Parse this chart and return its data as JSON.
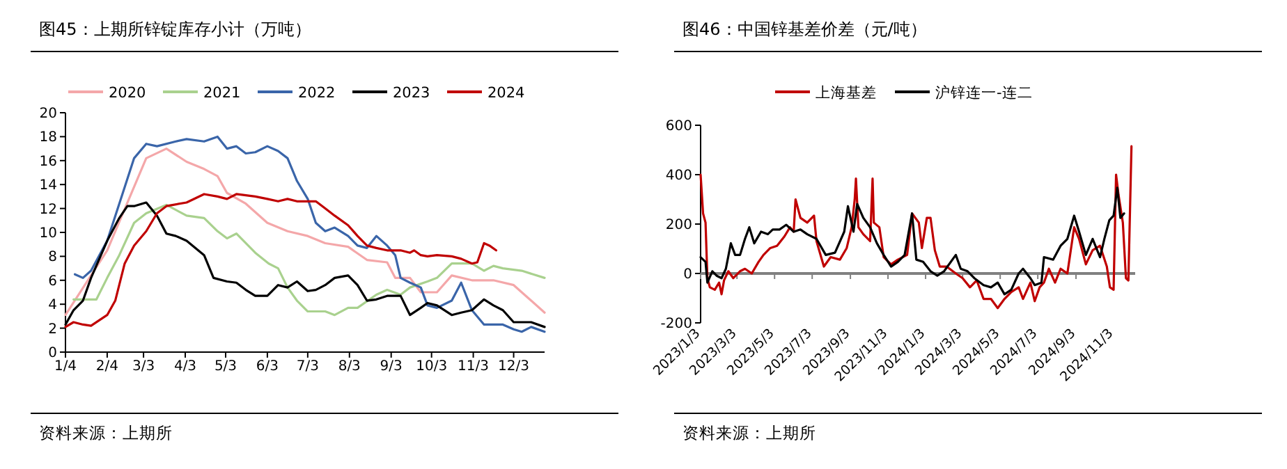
{
  "chart_data": [
    {
      "type": "line",
      "title": "图45：上期所锌锭库存小计（万吨）",
      "annotations": [
        "资料来源：上期所"
      ],
      "legend": "top",
      "grid": false,
      "marker": "none",
      "line_style": "solid",
      "xlim": [
        "--01-04",
        "--12-26"
      ],
      "xticks": [
        {
          "value": "--01-04",
          "label": "1/4"
        },
        {
          "value": "--02-04",
          "label": "2/4"
        },
        {
          "value": "--03-03",
          "label": "3/3"
        },
        {
          "value": "--04-03",
          "label": "4/3"
        },
        {
          "value": "--05-03",
          "label": "5/3"
        },
        {
          "value": "--06-03",
          "label": "6/3"
        },
        {
          "value": "--07-03",
          "label": "7/3"
        },
        {
          "value": "--08-03",
          "label": "8/3"
        },
        {
          "value": "--09-03",
          "label": "9/3"
        },
        {
          "value": "--10-03",
          "label": "10/3"
        },
        {
          "value": "--11-03",
          "label": "11/3"
        },
        {
          "value": "--12-03",
          "label": "12/3"
        }
      ],
      "ylim": [
        0,
        20
      ],
      "yticks": [
        0,
        2,
        4,
        6,
        8,
        10,
        12,
        14,
        16,
        18,
        20
      ],
      "series": [
        {
          "name": "2020",
          "color": "#f4a7a9",
          "x": [
            "--01-04",
            "--02-04",
            "--03-05",
            "--03-20",
            "--04-04",
            "--04-17",
            "--04-27",
            "--05-04",
            "--05-18",
            "--06-03",
            "--06-18",
            "--07-03",
            "--07-16",
            "--08-02",
            "--08-16",
            "--08-31",
            "--09-06",
            "--09-17",
            "--09-25",
            "--10-07",
            "--10-18",
            "--11-02",
            "--11-18",
            "--12-03",
            "--12-16",
            "--12-26"
          ],
          "values": [
            3.1,
            8.5,
            16.2,
            17.0,
            15.9,
            15.3,
            14.7,
            13.3,
            12.4,
            10.8,
            10.1,
            9.7,
            9.1,
            8.8,
            7.7,
            7.5,
            6.2,
            6.2,
            5.0,
            5.0,
            6.4,
            6.0,
            6.0,
            5.6,
            4.3,
            3.3
          ]
        },
        {
          "name": "2021",
          "color": "#a9d18e",
          "x": [
            "--01-10",
            "--01-27",
            "--02-04",
            "--02-13",
            "--02-24",
            "--03-05",
            "--03-20",
            "--04-04",
            "--04-17",
            "--04-27",
            "--05-04",
            "--05-11",
            "--05-25",
            "--06-04",
            "--06-11",
            "--06-18",
            "--06-25",
            "--07-03",
            "--07-16",
            "--07-23",
            "--08-02",
            "--08-09",
            "--08-23",
            "--08-31",
            "--09-10",
            "--09-17",
            "--09-30",
            "--10-07",
            "--10-18",
            "--11-02",
            "--11-11",
            "--11-18",
            "--11-25",
            "--12-09",
            "--12-26"
          ],
          "values": [
            4.4,
            4.4,
            6.2,
            8.1,
            10.8,
            11.6,
            12.3,
            11.4,
            11.2,
            10.1,
            9.5,
            9.9,
            8.3,
            7.4,
            7.0,
            5.4,
            4.3,
            3.4,
            3.4,
            3.1,
            3.7,
            3.7,
            4.8,
            5.2,
            4.8,
            5.4,
            5.9,
            6.2,
            7.4,
            7.4,
            6.8,
            7.2,
            7.0,
            6.8,
            6.2
          ]
        },
        {
          "name": "2022",
          "color": "#3a65a9",
          "x": [
            "--01-11",
            "--01-17",
            "--01-23",
            "--02-04",
            "--02-13",
            "--02-24",
            "--03-05",
            "--03-13",
            "--03-27",
            "--04-04",
            "--04-17",
            "--04-27",
            "--05-04",
            "--05-11",
            "--05-18",
            "--05-25",
            "--06-03",
            "--06-11",
            "--06-18",
            "--06-25",
            "--07-03",
            "--07-09",
            "--07-16",
            "--07-23",
            "--08-02",
            "--08-09",
            "--08-16",
            "--08-23",
            "--08-31",
            "--09-06",
            "--09-10",
            "--09-17",
            "--09-25",
            "--09-30",
            "--10-07",
            "--10-18",
            "--10-25",
            "--11-02",
            "--11-11",
            "--11-18",
            "--11-25",
            "--12-03",
            "--12-09",
            "--12-16",
            "--12-26"
          ],
          "values": [
            6.5,
            6.2,
            6.8,
            9.3,
            12.4,
            16.2,
            17.4,
            17.2,
            17.6,
            17.8,
            17.6,
            18.0,
            17.0,
            17.2,
            16.6,
            16.7,
            17.2,
            16.8,
            16.2,
            14.3,
            12.8,
            10.8,
            10.1,
            10.4,
            9.7,
            8.9,
            8.7,
            9.7,
            8.9,
            8.1,
            6.2,
            5.8,
            5.4,
            3.9,
            3.7,
            4.3,
            5.8,
            3.5,
            2.3,
            2.3,
            2.3,
            1.9,
            1.7,
            2.1,
            1.7
          ]
        },
        {
          "name": "2023",
          "color": "#000000",
          "x": [
            "--01-04",
            "--01-10",
            "--01-17",
            "--01-23",
            "--02-04",
            "--02-13",
            "--02-19",
            "--02-24",
            "--03-05",
            "--03-13",
            "--03-20",
            "--03-27",
            "--04-04",
            "--04-17",
            "--04-24",
            "--05-04",
            "--05-11",
            "--05-18",
            "--05-25",
            "--06-03",
            "--06-11",
            "--06-18",
            "--06-25",
            "--07-03",
            "--07-09",
            "--07-16",
            "--07-23",
            "--08-02",
            "--08-09",
            "--08-16",
            "--08-23",
            "--08-31",
            "--09-10",
            "--09-17",
            "--09-25",
            "--09-30",
            "--10-07",
            "--10-18",
            "--10-25",
            "--11-02",
            "--11-11",
            "--11-18",
            "--11-25",
            "--12-03",
            "--12-16",
            "--12-26"
          ],
          "values": [
            2.3,
            3.5,
            4.3,
            6.2,
            9.3,
            11.2,
            12.2,
            12.2,
            12.5,
            11.4,
            9.9,
            9.7,
            9.3,
            8.1,
            6.2,
            5.9,
            5.8,
            5.2,
            4.7,
            4.7,
            5.6,
            5.4,
            5.9,
            5.1,
            5.2,
            5.6,
            6.2,
            6.4,
            5.6,
            4.3,
            4.4,
            4.7,
            4.7,
            3.1,
            3.7,
            4.1,
            3.9,
            3.1,
            3.3,
            3.5,
            4.4,
            3.9,
            3.5,
            2.5,
            2.5,
            2.1
          ]
        },
        {
          "name": "2024",
          "color": "#c00000",
          "x": [
            "--01-04",
            "--01-10",
            "--01-17",
            "--01-23",
            "--02-04",
            "--02-10",
            "--02-17",
            "--02-24",
            "--03-05",
            "--03-13",
            "--03-20",
            "--04-04",
            "--04-17",
            "--04-27",
            "--05-04",
            "--05-11",
            "--05-25",
            "--06-03",
            "--06-11",
            "--06-18",
            "--06-25",
            "--07-09",
            "--07-16",
            "--07-23",
            "--08-02",
            "--08-09",
            "--08-16",
            "--08-23",
            "--08-31",
            "--09-10",
            "--09-17",
            "--09-20",
            "--09-25",
            "--09-30",
            "--10-07",
            "--10-18",
            "--10-25",
            "--11-02",
            "--11-06",
            "--11-11",
            "--11-15",
            "--11-20"
          ],
          "values": [
            2.1,
            2.5,
            2.3,
            2.2,
            3.1,
            4.3,
            7.4,
            8.9,
            10.1,
            11.6,
            12.2,
            12.5,
            13.2,
            13.0,
            12.8,
            13.2,
            13.0,
            12.8,
            12.6,
            12.8,
            12.6,
            12.6,
            12.0,
            11.4,
            10.6,
            9.7,
            8.9,
            8.7,
            8.5,
            8.5,
            8.3,
            8.5,
            8.1,
            8.0,
            8.1,
            8.0,
            7.8,
            7.4,
            7.5,
            9.1,
            8.9,
            8.5
          ]
        }
      ]
    },
    {
      "type": "line",
      "title": "图46：中国锌基差价差（元/吨）",
      "annotations": [
        "资料来源：上期所"
      ],
      "legend": "top",
      "grid": false,
      "marker": "none",
      "line_style": "solid",
      "xlim": [
        "2023-01-03",
        "2024-12-08"
      ],
      "xticks": [
        {
          "value": "2023-01-03",
          "label": "2023/1/3"
        },
        {
          "value": "2023-03-03",
          "label": "2023/3/3"
        },
        {
          "value": "2023-05-03",
          "label": "2023/5/3"
        },
        {
          "value": "2023-07-03",
          "label": "2023/7/3"
        },
        {
          "value": "2023-09-03",
          "label": "2023/9/3"
        },
        {
          "value": "2023-11-03",
          "label": "2023/11/3"
        },
        {
          "value": "2024-01-03",
          "label": "2024/1/3"
        },
        {
          "value": "2024-03-03",
          "label": "2024/3/3"
        },
        {
          "value": "2024-05-03",
          "label": "2024/5/3"
        },
        {
          "value": "2024-07-03",
          "label": "2024/7/3"
        },
        {
          "value": "2024-09-03",
          "label": "2024/9/3"
        },
        {
          "value": "2024-11-03",
          "label": "2024/11/3"
        }
      ],
      "ylim": [
        -200,
        600
      ],
      "yticks": [
        -200,
        0,
        200,
        400,
        600
      ],
      "ref_lines": [
        {
          "axis": "y",
          "value": 0,
          "color": "#808080"
        }
      ],
      "series": [
        {
          "name": "上海基差",
          "color": "#c00000",
          "x": [
            "2023-01-03",
            "2023-01-07",
            "2023-01-11",
            "2023-01-14",
            "2023-01-18",
            "2023-01-26",
            "2023-02-02",
            "2023-02-06",
            "2023-02-10",
            "2023-02-17",
            "2023-02-25",
            "2023-03-08",
            "2023-03-16",
            "2023-03-27",
            "2023-04-07",
            "2023-04-15",
            "2023-04-26",
            "2023-05-07",
            "2023-05-19",
            "2023-05-28",
            "2023-06-03",
            "2023-06-06",
            "2023-06-14",
            "2023-06-25",
            "2023-07-06",
            "2023-07-10",
            "2023-07-22",
            "2023-08-02",
            "2023-08-17",
            "2023-08-28",
            "2023-09-05",
            "2023-09-10",
            "2023-09-12",
            "2023-09-16",
            "2023-09-24",
            "2023-10-05",
            "2023-10-09",
            "2023-10-11",
            "2023-10-20",
            "2023-10-27",
            "2023-11-08",
            "2023-11-19",
            "2023-12-04",
            "2023-12-12",
            "2023-12-23",
            "2023-12-28",
            "2024-01-05",
            "2024-01-11",
            "2024-01-18",
            "2024-01-26",
            "2024-02-06",
            "2024-02-21",
            "2024-03-03",
            "2024-03-15",
            "2024-03-26",
            "2024-04-06",
            "2024-04-18",
            "2024-04-29",
            "2024-05-10",
            "2024-05-21",
            "2024-06-02",
            "2024-06-09",
            "2024-06-21",
            "2024-06-28",
            "2024-07-06",
            "2024-07-13",
            "2024-07-21",
            "2024-07-31",
            "2024-08-09",
            "2024-08-20",
            "2024-08-31",
            "2024-09-08",
            "2024-09-19",
            "2024-09-30",
            "2024-10-12",
            "2024-10-23",
            "2024-10-28",
            "2024-11-03",
            "2024-11-07",
            "2024-11-11",
            "2024-11-18",
            "2024-11-23",
            "2024-11-27",
            "2024-12-02"
          ],
          "values": [
            400,
            243,
            206,
            -19,
            -56,
            -66,
            -37,
            -84,
            -28,
            9,
            -19,
            9,
            19,
            0,
            47,
            75,
            103,
            112,
            150,
            187,
            169,
            300,
            225,
            206,
            234,
            131,
            28,
            66,
            56,
            103,
            187,
            300,
            384,
            187,
            159,
            131,
            384,
            206,
            187,
            66,
            37,
            56,
            75,
            243,
            206,
            103,
            225,
            225,
            94,
            28,
            28,
            0,
            -19,
            -56,
            -28,
            -103,
            -103,
            -140,
            -103,
            -75,
            -56,
            -103,
            -37,
            -112,
            -56,
            -37,
            19,
            -37,
            19,
            0,
            187,
            140,
            37,
            94,
            112,
            28,
            -56,
            -66,
            400,
            318,
            206,
            -19,
            -28,
            515
          ]
        },
        {
          "name": "沪锌连一-连二",
          "color": "#000000",
          "x": [
            "2023-01-03",
            "2023-01-11",
            "2023-01-14",
            "2023-01-22",
            "2023-01-29",
            "2023-02-06",
            "2023-02-13",
            "2023-02-21",
            "2023-02-28",
            "2023-03-08",
            "2023-03-16",
            "2023-03-23",
            "2023-03-31",
            "2023-04-11",
            "2023-04-22",
            "2023-04-30",
            "2023-05-11",
            "2023-05-22",
            "2023-06-03",
            "2023-06-14",
            "2023-06-25",
            "2023-07-10",
            "2023-07-25",
            "2023-08-09",
            "2023-08-24",
            "2023-08-30",
            "2023-09-08",
            "2023-09-14",
            "2023-09-24",
            "2023-10-05",
            "2023-10-16",
            "2023-10-27",
            "2023-11-08",
            "2023-11-19",
            "2023-11-30",
            "2023-12-12",
            "2023-12-19",
            "2023-12-30",
            "2024-01-11",
            "2024-01-22",
            "2024-02-02",
            "2024-02-21",
            "2024-02-29",
            "2024-03-11",
            "2024-03-22",
            "2024-04-06",
            "2024-04-18",
            "2024-04-29",
            "2024-05-10",
            "2024-05-21",
            "2024-06-02",
            "2024-06-09",
            "2024-06-21",
            "2024-06-28",
            "2024-07-09",
            "2024-07-13",
            "2024-07-28",
            "2024-08-09",
            "2024-08-20",
            "2024-08-31",
            "2024-09-08",
            "2024-09-19",
            "2024-09-30",
            "2024-10-12",
            "2024-10-19",
            "2024-10-27",
            "2024-11-03",
            "2024-11-09",
            "2024-11-14",
            "2024-11-20"
          ],
          "values": [
            66,
            47,
            -37,
            9,
            -9,
            -19,
            19,
            122,
            75,
            75,
            140,
            187,
            122,
            169,
            159,
            178,
            178,
            197,
            169,
            178,
            159,
            140,
            75,
            84,
            169,
            272,
            169,
            281,
            225,
            187,
            122,
            75,
            28,
            47,
            75,
            243,
            56,
            47,
            9,
            -9,
            9,
            75,
            19,
            9,
            -19,
            -47,
            -56,
            -37,
            -84,
            -66,
            0,
            19,
            -19,
            -47,
            -37,
            66,
            56,
            112,
            140,
            234,
            169,
            75,
            140,
            66,
            140,
            215,
            234,
            347,
            225,
            243
          ]
        }
      ]
    }
  ]
}
